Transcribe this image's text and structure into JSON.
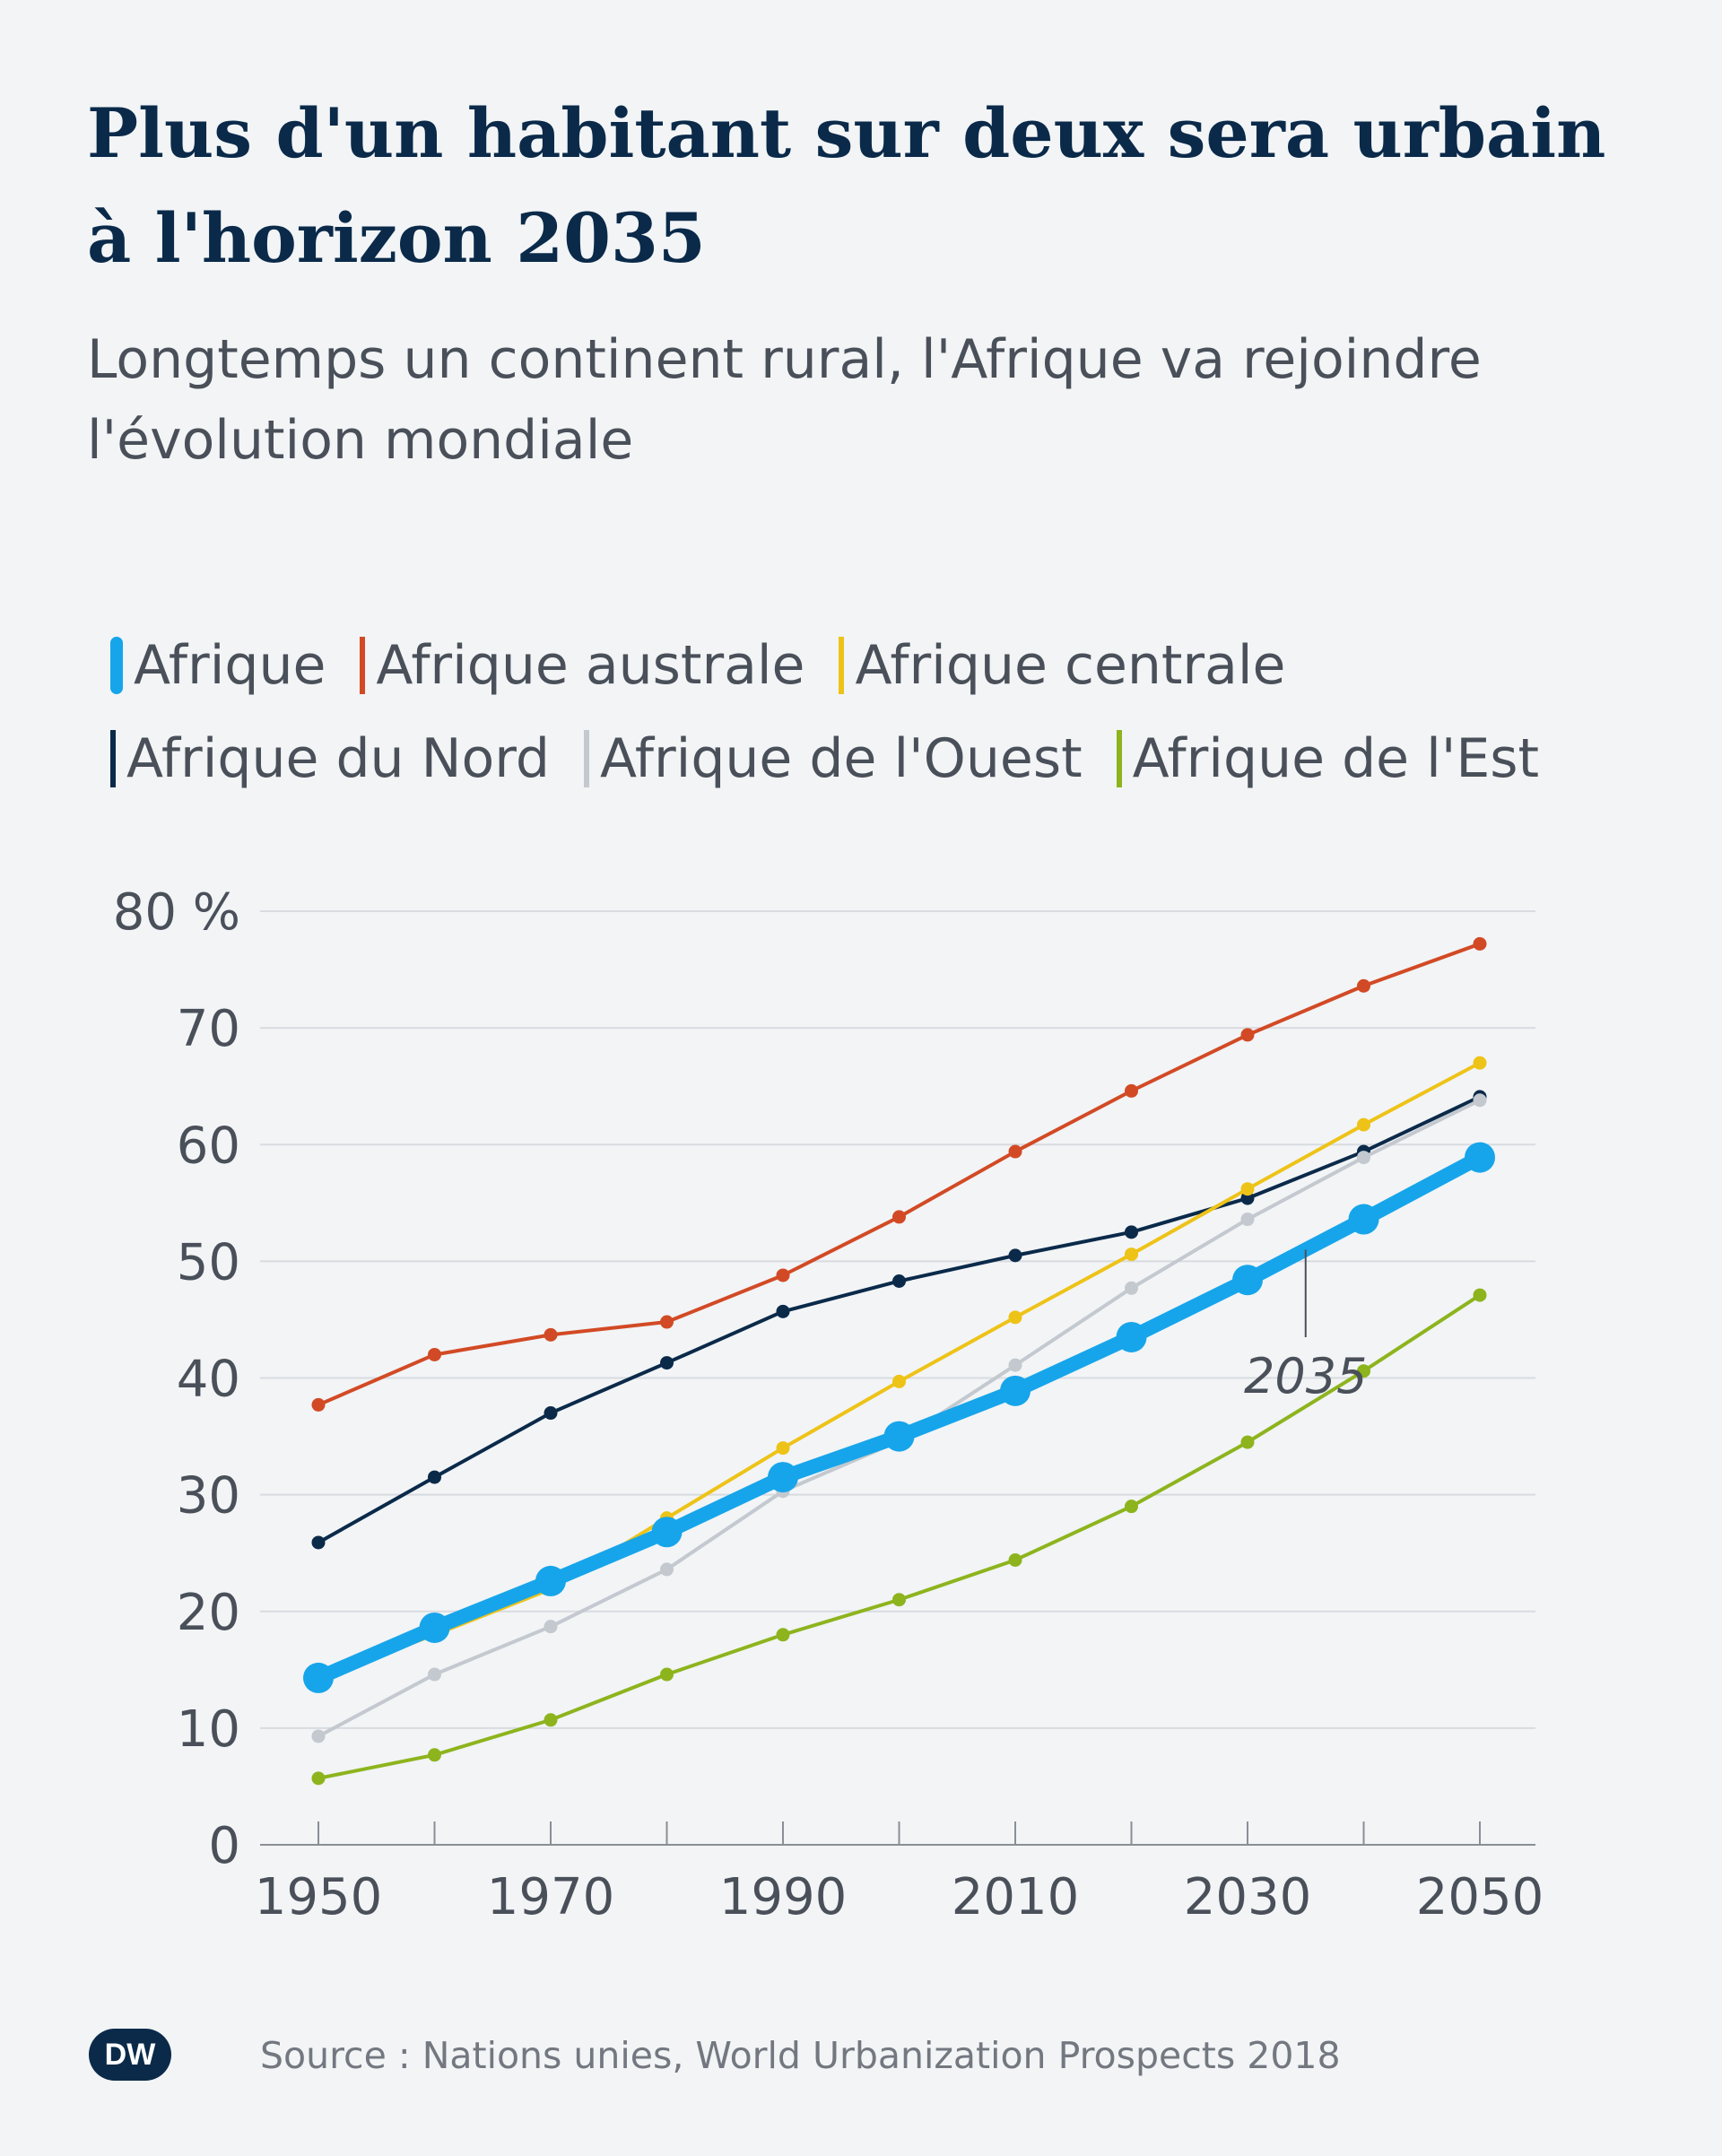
{
  "header": {
    "title": "Plus d'un habitant sur deux sera urbain à l'horizon 2035",
    "subtitle": "Longtemps un continent rural, l'Afrique va rejoindre l'évolution mondiale"
  },
  "footer": {
    "source": "Source : Nations unies, World Urbanization Prospects 2018",
    "logo_text": "DW"
  },
  "colors": {
    "background": "#f2f4f6",
    "title": "#0b2a4a",
    "grid": "#d8dbe0",
    "axis_text": "#4a5059"
  },
  "chart_data": {
    "type": "line",
    "x": [
      1950,
      1960,
      1970,
      1980,
      1990,
      2000,
      2010,
      2020,
      2030,
      2040,
      2050
    ],
    "xticks": [
      "1950",
      "1970",
      "1990",
      "2010",
      "2030",
      "2050"
    ],
    "xlim": [
      1950,
      2050
    ],
    "ylim": [
      0,
      80
    ],
    "yticks": [
      "0",
      "10",
      "20",
      "30",
      "40",
      "50",
      "60",
      "70",
      "80 %"
    ],
    "grid": true,
    "legend_position": "top",
    "annotation": {
      "text": "2035",
      "x": 2035
    },
    "series": [
      {
        "name": "Afrique du Nord",
        "color": "#0b2a4a",
        "values": [
          25.9,
          31.5,
          37.0,
          41.3,
          45.7,
          48.3,
          50.5,
          52.5,
          55.4,
          59.4,
          64.1
        ]
      },
      {
        "name": "Afrique de l'Ouest",
        "color": "#c3c9cf",
        "values": [
          9.3,
          14.6,
          18.7,
          23.6,
          30.3,
          34.6,
          41.1,
          47.7,
          53.6,
          58.9,
          63.8
        ]
      },
      {
        "name": "Afrique centrale",
        "color": "#eec317",
        "values": [
          14.3,
          18.0,
          21.9,
          28.0,
          34.0,
          39.7,
          45.2,
          50.6,
          56.2,
          61.7,
          67.0
        ]
      },
      {
        "name": "Afrique australe",
        "color": "#d24a25",
        "values": [
          37.7,
          42.0,
          43.7,
          44.8,
          48.8,
          53.8,
          59.4,
          64.6,
          69.4,
          73.6,
          77.2
        ]
      },
      {
        "name": "Afrique de l'Est",
        "color": "#8db41d",
        "values": [
          5.7,
          7.7,
          10.7,
          14.6,
          18.0,
          21.0,
          24.4,
          29.0,
          34.5,
          40.6,
          47.1
        ]
      },
      {
        "name": "Afrique",
        "color": "#16a5ea",
        "values": [
          14.3,
          18.6,
          22.6,
          26.8,
          31.5,
          35.0,
          38.9,
          43.5,
          48.4,
          53.6,
          58.9
        ]
      }
    ]
  },
  "legend": {
    "rows": [
      [
        "Afrique",
        "Afrique australe",
        "Afrique centrale"
      ],
      [
        "Afrique du Nord",
        "Afrique de l'Ouest",
        "Afrique de l'Est"
      ]
    ]
  }
}
